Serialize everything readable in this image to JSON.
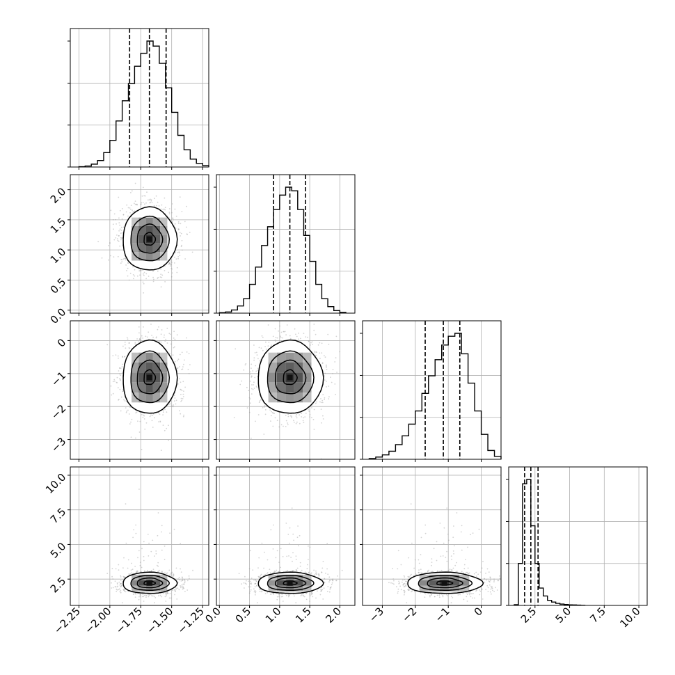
{
  "chart_data": {
    "type": "corner",
    "title": "",
    "parameters": [
      "",
      "",
      "",
      ""
    ],
    "quantiles": [
      0.16,
      0.5,
      0.84
    ],
    "colors": {
      "line": "#000000",
      "grid": "#b0b0b0",
      "background": "#ffffff"
    },
    "grid": true,
    "marginals": [
      {
        "param_index": 0,
        "range": [
          -2.25,
          -1.2
        ],
        "quantile_values": [
          -1.84,
          -1.68,
          -1.545
        ],
        "bins": [
          -2.25,
          -2.2,
          -2.15,
          -2.1,
          -2.05,
          -2.0,
          -1.95,
          -1.9,
          -1.85,
          -1.8,
          -1.75,
          -1.7,
          -1.65,
          -1.6,
          -1.55,
          -1.5,
          -1.45,
          -1.4,
          -1.35,
          -1.3,
          -1.25,
          -1.2
        ],
        "counts": [
          0.2,
          0.7,
          2,
          4.5,
          10,
          18.5,
          32,
          46,
          58,
          70,
          79,
          87.5,
          84,
          72,
          55,
          38,
          22,
          12,
          5.5,
          2.5,
          1
        ]
      },
      {
        "param_index": 1,
        "range": [
          -0.05,
          2.25
        ],
        "quantile_values": [
          0.9,
          1.17,
          1.43
        ],
        "bins": [
          0.0,
          0.1,
          0.2,
          0.3,
          0.4,
          0.5,
          0.6,
          0.7,
          0.8,
          0.9,
          1.0,
          1.1,
          1.2,
          1.3,
          1.4,
          1.5,
          1.6,
          1.7,
          1.8,
          1.9,
          2.0,
          2.1
        ],
        "counts": [
          0.3,
          0.8,
          2.2,
          5,
          10,
          20,
          32,
          47,
          60,
          72,
          82,
          87.5,
          85,
          72,
          54,
          36,
          20,
          10,
          4.5,
          1.8,
          0.5
        ]
      },
      {
        "param_index": 2,
        "range": [
          -3.6,
          0.6
        ],
        "quantile_values": [
          -1.7,
          -1.15,
          -0.65
        ],
        "bins": [
          -3.4,
          -3.2,
          -3.0,
          -2.8,
          -2.6,
          -2.4,
          -2.2,
          -2.0,
          -1.8,
          -1.6,
          -1.4,
          -1.2,
          -1.0,
          -0.8,
          -0.6,
          -0.4,
          -0.2,
          0.0,
          0.2,
          0.4,
          0.6
        ],
        "counts": [
          0.5,
          1.5,
          3,
          5.5,
          10,
          16,
          24,
          33,
          45,
          57,
          68,
          78,
          84,
          86,
          72,
          52,
          33,
          17,
          6,
          2
        ]
      },
      {
        "param_index": 3,
        "range": [
          0.6,
          10.6
        ],
        "quantile_values": [
          1.75,
          2.2,
          2.72
        ],
        "bins": [
          1.0,
          1.3,
          1.6,
          1.9,
          2.2,
          2.5,
          2.8,
          3.1,
          3.4,
          3.7,
          4.0,
          4.3,
          4.6,
          4.9,
          5.2,
          5.5,
          5.8,
          6.1
        ],
        "counts": [
          0.5,
          29,
          84,
          87,
          55,
          29,
          12,
          6.5,
          3.5,
          2.3,
          1.4,
          0.9,
          0.6,
          0.4,
          0.3,
          0.2,
          0.1
        ]
      }
    ],
    "axes": {
      "x_ticks": [
        {
          "range": [
            -2.32,
            -1.2
          ],
          "ticks": [
            -2.25,
            -2.0,
            -1.75,
            -1.5,
            -1.25
          ],
          "labels": [
            "−2.25",
            "−2.00",
            "−1.75",
            "−1.50",
            "−1.25"
          ]
        },
        {
          "range": [
            -0.05,
            2.25
          ],
          "ticks": [
            0.0,
            0.5,
            1.0,
            1.5,
            2.0
          ],
          "labels": [
            "0.0",
            "0.5",
            "1.0",
            "1.5",
            "2.0"
          ]
        },
        {
          "range": [
            -3.6,
            0.6
          ],
          "ticks": [
            -3,
            -2,
            -1,
            0
          ],
          "labels": [
            "−3",
            "−2",
            "−1",
            "0"
          ]
        },
        {
          "range": [
            0.6,
            10.6
          ],
          "ticks": [
            2.5,
            5.0,
            7.5,
            10.0
          ],
          "labels": [
            "2.5",
            "5.0",
            "7.5",
            "10.0"
          ]
        }
      ],
      "y_ticks": [
        null,
        {
          "range": [
            -0.05,
            2.25
          ],
          "ticks": [
            0.0,
            0.5,
            1.0,
            1.5,
            2.0
          ],
          "labels": [
            "0.0",
            "0.5",
            "1.0",
            "1.5",
            "2.0"
          ]
        },
        {
          "range": [
            -3.6,
            0.6
          ],
          "ticks": [
            -3,
            -2,
            -1,
            0
          ],
          "labels": [
            "−3",
            "−2",
            "−1",
            "0"
          ]
        },
        {
          "range": [
            0.6,
            10.6
          ],
          "ticks": [
            2.5,
            5.0,
            7.5,
            10.0
          ],
          "labels": [
            "2.5",
            "5.0",
            "7.5",
            "10.0"
          ]
        }
      ]
    },
    "joint": [
      {
        "row": 1,
        "col": 0,
        "center": [
          -1.68,
          1.18
        ],
        "sd": [
          0.105,
          0.26
        ]
      },
      {
        "row": 2,
        "col": 0,
        "center": [
          -1.68,
          -1.12
        ],
        "sd": [
          0.105,
          0.55
        ]
      },
      {
        "row": 2,
        "col": 1,
        "center": [
          1.17,
          -1.12
        ],
        "sd": [
          0.26,
          0.55
        ]
      },
      {
        "row": 3,
        "col": 0,
        "center": [
          -1.68,
          2.22
        ],
        "sd": [
          0.105,
          0.38
        ]
      },
      {
        "row": 3,
        "col": 1,
        "center": [
          1.17,
          2.22
        ],
        "sd": [
          0.26,
          0.38
        ]
      },
      {
        "row": 3,
        "col": 2,
        "center": [
          -1.12,
          2.22
        ],
        "sd": [
          0.55,
          0.38
        ]
      }
    ]
  }
}
